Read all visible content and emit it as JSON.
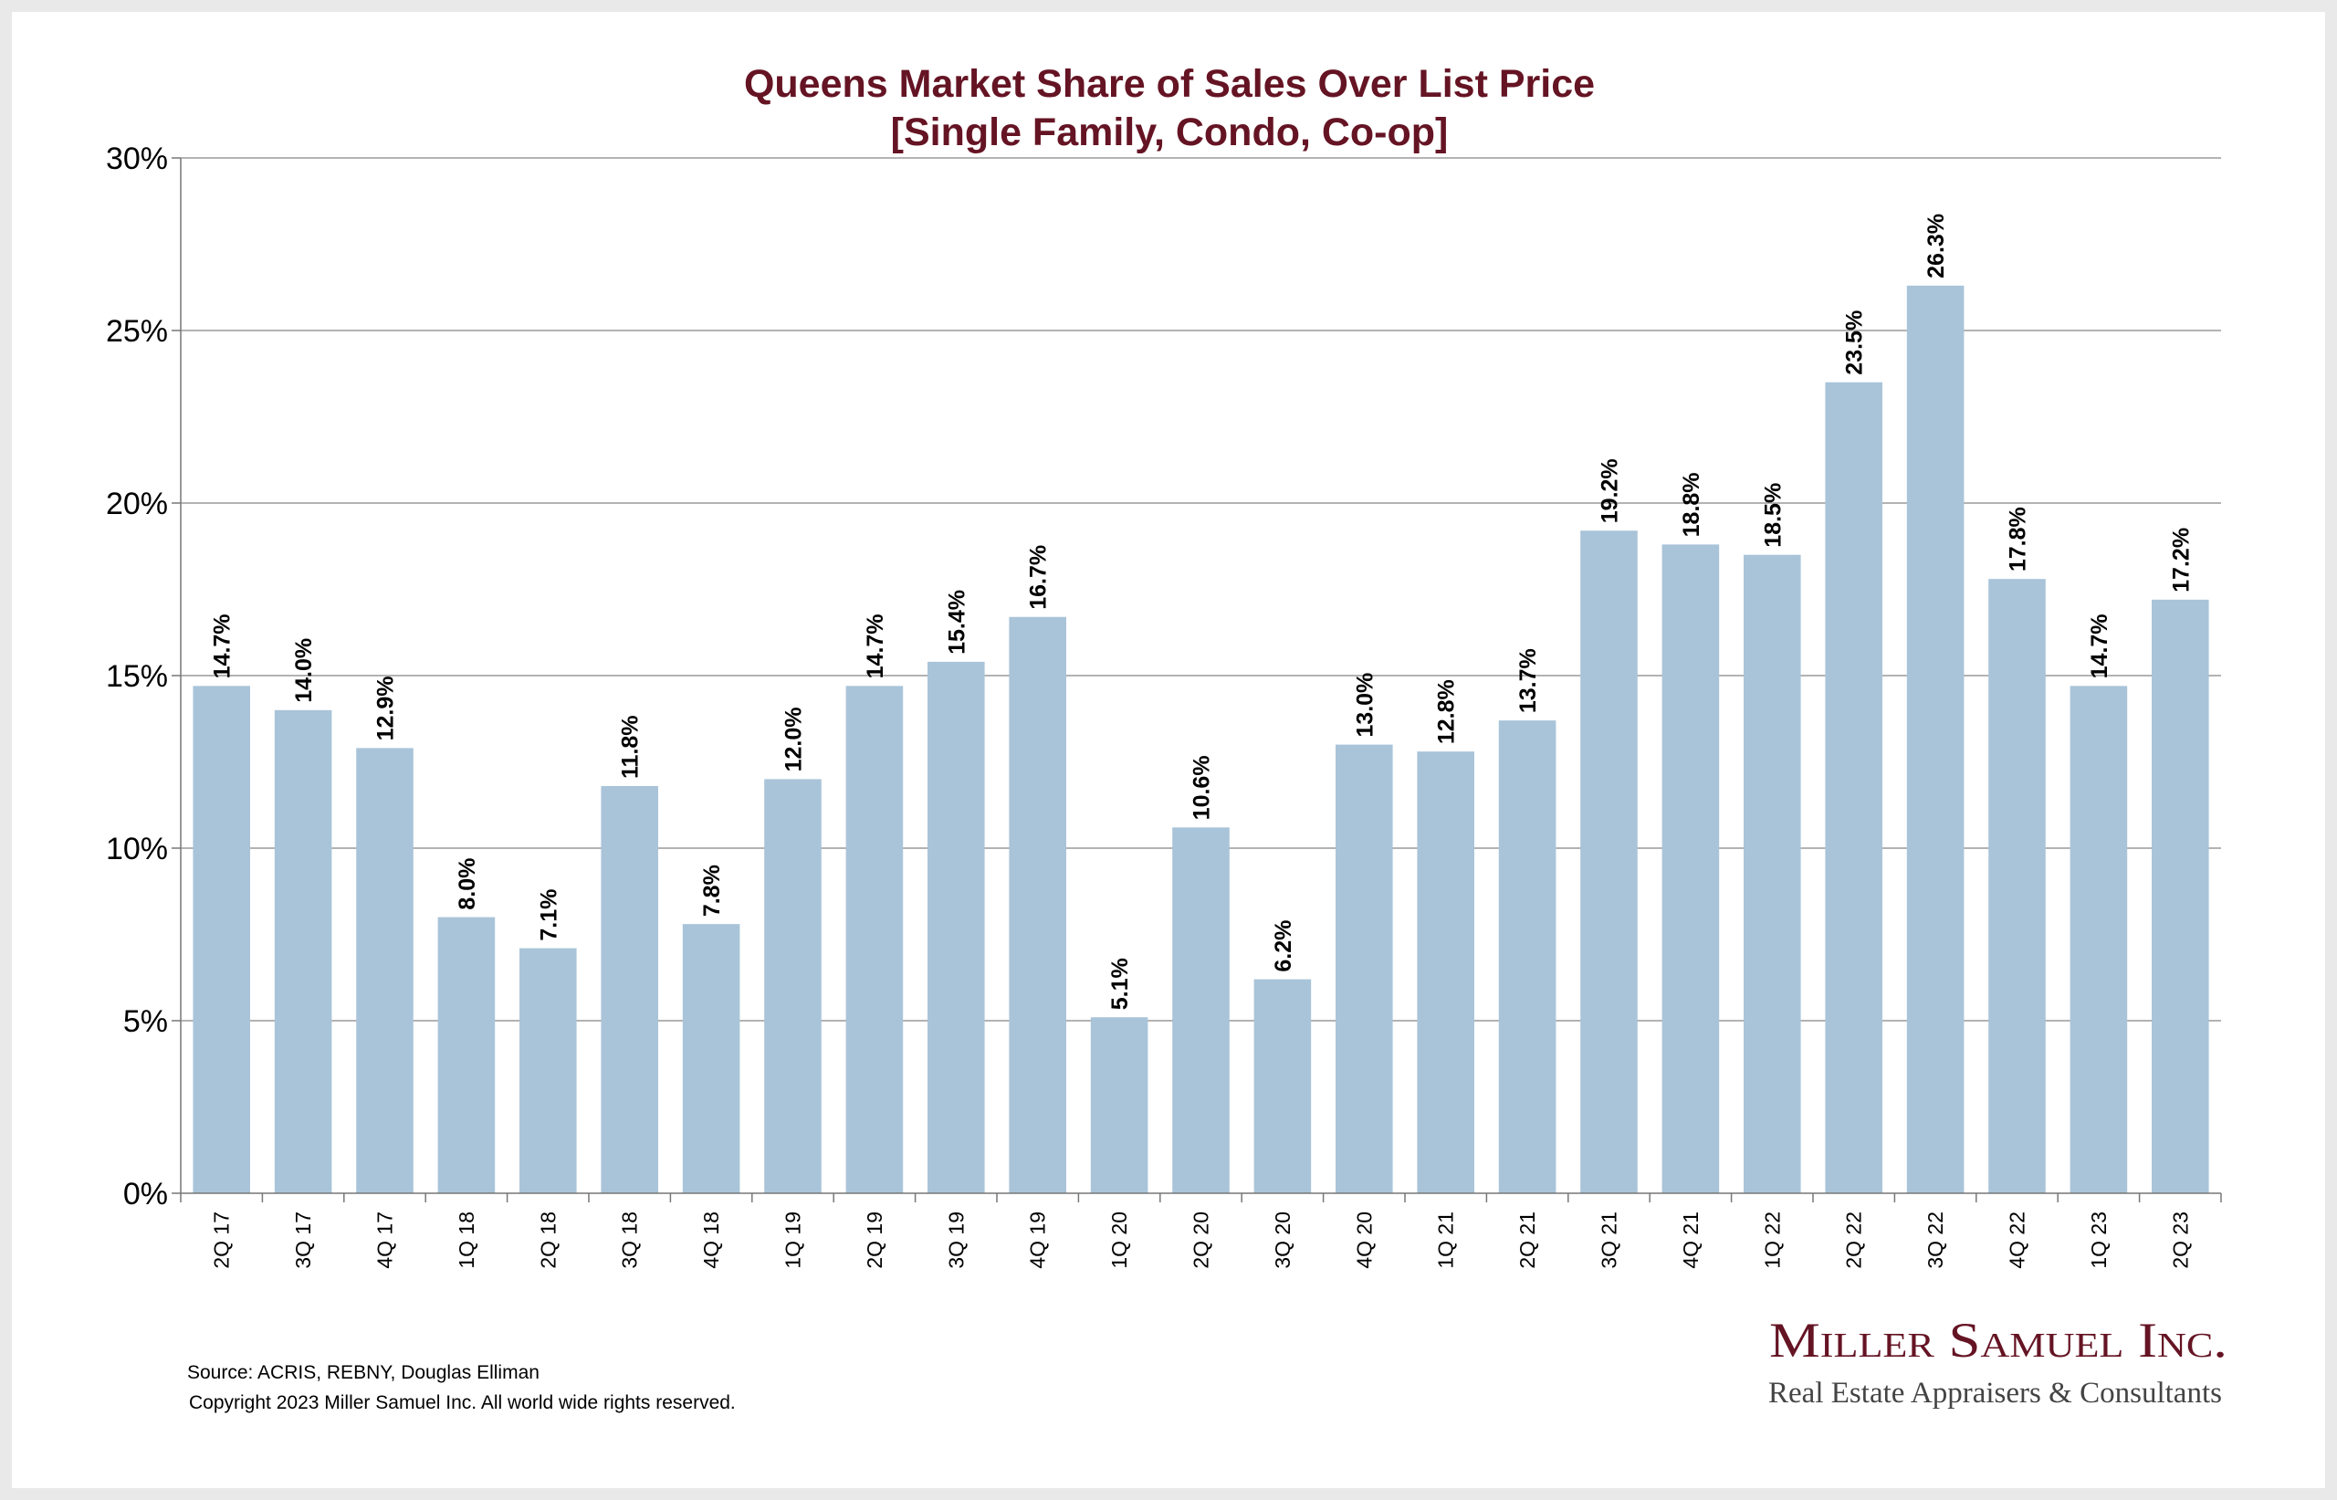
{
  "chart_data": {
    "type": "bar",
    "title": "Queens Market Share of Sales Over List Price",
    "subtitle": "[Single Family, Condo, Co-op]",
    "categories": [
      "2Q 17",
      "3Q 17",
      "4Q 17",
      "1Q 18",
      "2Q 18",
      "3Q 18",
      "4Q 18",
      "1Q 19",
      "2Q 19",
      "3Q 19",
      "4Q 19",
      "1Q 20",
      "2Q 20",
      "3Q 20",
      "4Q 20",
      "1Q 21",
      "2Q 21",
      "3Q 21",
      "4Q 21",
      "1Q 22",
      "2Q 22",
      "3Q 22",
      "4Q 22",
      "1Q 23",
      "2Q 23"
    ],
    "values": [
      14.7,
      14.0,
      12.9,
      8.0,
      7.1,
      11.8,
      7.8,
      12.0,
      14.7,
      15.4,
      16.7,
      5.1,
      10.6,
      6.2,
      13.0,
      12.8,
      13.7,
      19.2,
      18.8,
      18.5,
      23.5,
      26.3,
      17.8,
      14.7,
      17.2
    ],
    "ylim": [
      0,
      30
    ],
    "yticks": [
      0,
      5,
      10,
      15,
      20,
      25,
      30
    ],
    "ytick_labels": [
      "0%",
      "5%",
      "10%",
      "15%",
      "20%",
      "25%",
      "30%"
    ],
    "value_suffix": "%",
    "grid": true,
    "bar_color": "#a9c4d9",
    "title_color": "#651424"
  },
  "footer": {
    "source": "Source: ACRIS, REBNY, Douglas Elliman",
    "copyright": "Copyright 2023 Miller Samuel Inc.  All world wide rights reserved."
  },
  "logo": {
    "main": "Miller Samuel Inc.",
    "sub": "Real Estate Appraisers & Consultants"
  }
}
